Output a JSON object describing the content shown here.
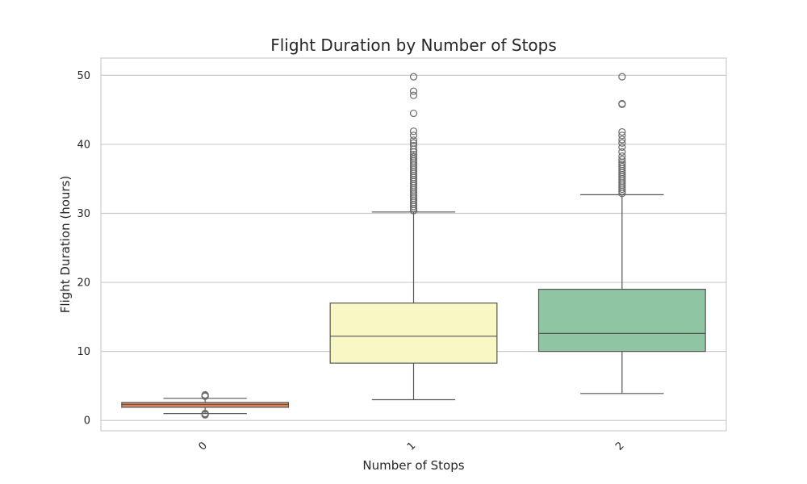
{
  "chart_data": {
    "type": "box",
    "title": "Flight Duration by Number of Stops",
    "xlabel": "Number of Stops",
    "ylabel": "Flight Duration (hours)",
    "ylim": [
      -1.5,
      52.5
    ],
    "yticks": [
      0,
      10,
      20,
      30,
      40,
      50
    ],
    "grid": true,
    "categories": [
      "0",
      "1",
      "2"
    ],
    "boxes": [
      {
        "category": "0",
        "color": "#E8895E",
        "whisker_low": 1.0,
        "q1": 1.9,
        "median": 2.3,
        "q3": 2.6,
        "whisker_high": 3.2,
        "outliers": [
          0.8,
          0.9,
          1.0,
          3.5,
          3.6,
          3.7
        ]
      },
      {
        "category": "1",
        "color": "#F8F8C4",
        "whisker_low": 3.0,
        "q1": 8.3,
        "median": 12.2,
        "q3": 17.0,
        "whisker_high": 30.2,
        "outliers": [
          30.4,
          30.7,
          31.0,
          31.3,
          31.6,
          31.9,
          32.2,
          32.5,
          32.8,
          33.1,
          33.4,
          33.7,
          34.0,
          34.3,
          34.6,
          34.9,
          35.2,
          35.5,
          35.8,
          36.1,
          36.4,
          36.7,
          37.0,
          37.3,
          37.6,
          37.9,
          38.2,
          38.5,
          38.9,
          39.3,
          39.8,
          40.2,
          40.6,
          41.3,
          41.9,
          44.5,
          47.1,
          47.7,
          49.8
        ]
      },
      {
        "category": "2",
        "color": "#8FC5A3",
        "whisker_low": 3.9,
        "q1": 10.0,
        "median": 12.6,
        "q3": 19.0,
        "whisker_high": 32.7,
        "outliers": [
          32.9,
          33.2,
          33.5,
          33.8,
          34.1,
          34.4,
          34.7,
          35.0,
          35.3,
          35.6,
          35.9,
          36.2,
          36.5,
          36.8,
          37.1,
          37.4,
          37.8,
          38.3,
          38.9,
          39.6,
          40.2,
          40.7,
          41.3,
          41.8,
          45.8,
          45.9,
          49.8
        ]
      }
    ]
  }
}
